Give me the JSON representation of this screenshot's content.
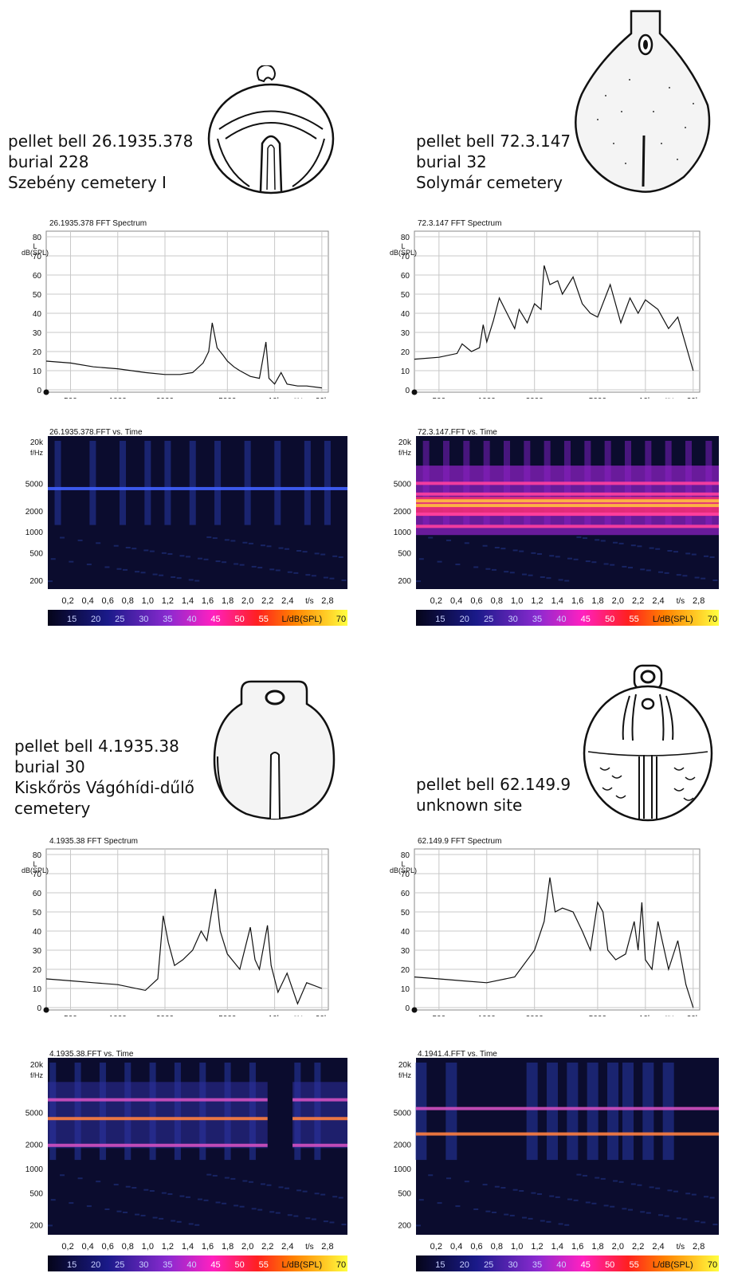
{
  "axis_text": {
    "db_top": "L",
    "db_unit": "dB(SPL)",
    "f_unit": "f/Hz",
    "t_unit": "t/s",
    "legend_unit": "L/dB(SPL)"
  },
  "colorbar_labels": [
    "15",
    "20",
    "25",
    "30",
    "35",
    "40",
    "45",
    "50",
    "55"
  ],
  "colorbar_last": "70",
  "colors": {
    "line": "#111111",
    "grid": "#c8c8c8",
    "spec_bg": "#0b0c2e"
  },
  "chart_data": [
    {
      "type": "line",
      "title": "26.1935.378 FFT Spectrum",
      "caption": [
        "pellet bell 26.1935.378",
        "burial 228",
        "Szebény cemetery I"
      ],
      "xscale": "log",
      "xlim": [
        350,
        22000
      ],
      "xticks": [
        "500",
        "1000",
        "2000",
        "5000",
        "10k",
        "20k"
      ],
      "ylim": [
        0,
        80
      ],
      "yticks": [
        "0",
        "10",
        "20",
        "30",
        "40",
        "50",
        "60",
        "70",
        "80"
      ],
      "grid": true,
      "x": [
        350,
        500,
        700,
        1000,
        1500,
        2000,
        2500,
        3000,
        3500,
        3800,
        4000,
        4300,
        4700,
        5000,
        5500,
        6000,
        7000,
        8000,
        8800,
        9200,
        10000,
        11000,
        12000,
        14000,
        16000,
        20000
      ],
      "y": [
        15,
        14,
        12,
        11,
        9,
        8,
        8,
        9,
        14,
        20,
        35,
        22,
        18,
        15,
        12,
        10,
        7,
        6,
        25,
        6,
        3,
        9,
        3,
        2,
        2,
        1
      ],
      "spectrogram": {
        "title": "26.1935.378.FFT vs. Time",
        "freq_ticks": [
          "20k",
          "5000",
          "2000",
          "1000",
          "500",
          "200"
        ],
        "time_ticks": [
          "0,2",
          "0,4",
          "0,6",
          "0,8",
          "1,0",
          "1,2",
          "1,4",
          "1,6",
          "1,8",
          "2,0",
          "2,2",
          "2,4",
          "2,8"
        ],
        "intensity": "low",
        "bands_hz": [
          4200
        ],
        "events_s": [
          0.1,
          0.45,
          0.75,
          1.0,
          1.2,
          1.45,
          1.7,
          2.0,
          2.3,
          2.6,
          2.8
        ]
      }
    },
    {
      "type": "line",
      "title": "72.3.147 FFT Spectrum",
      "caption": [
        "pellet bell 72.3.147",
        "burial 32",
        "Solymár cemetery"
      ],
      "xscale": "log",
      "xlim": [
        350,
        22000
      ],
      "xticks": [
        "500",
        "1000",
        "2000",
        "5000",
        "10k",
        "20k"
      ],
      "ylim": [
        0,
        80
      ],
      "yticks": [
        "0",
        "10",
        "20",
        "30",
        "40",
        "50",
        "60",
        "70",
        "80"
      ],
      "grid": true,
      "x": [
        350,
        500,
        650,
        700,
        800,
        900,
        950,
        1000,
        1100,
        1200,
        1500,
        1600,
        1800,
        2000,
        2200,
        2300,
        2500,
        2800,
        3000,
        3500,
        4000,
        4500,
        5000,
        6000,
        7000,
        8000,
        9000,
        10000,
        12000,
        14000,
        16000,
        20000
      ],
      "y": [
        16,
        17,
        19,
        24,
        20,
        22,
        34,
        25,
        36,
        48,
        32,
        42,
        35,
        45,
        42,
        65,
        55,
        57,
        50,
        59,
        45,
        40,
        38,
        55,
        35,
        48,
        40,
        47,
        42,
        32,
        38,
        10
      ],
      "spectrogram": {
        "title": "72.3.147.FFT vs. Time",
        "freq_ticks": [
          "20k",
          "5000",
          "2000",
          "1000",
          "500",
          "200"
        ],
        "time_ticks": [
          "0,2",
          "0,4",
          "0,6",
          "0,8",
          "1,0",
          "1,2",
          "1,4",
          "1,6",
          "1,8",
          "2,0",
          "2,2",
          "2,4",
          "2,8"
        ],
        "intensity": "high",
        "bands_hz": [
          2400,
          2800,
          1800,
          3500,
          5000,
          1200
        ],
        "events_s": [
          0.1,
          0.3,
          0.5,
          0.7,
          0.9,
          1.1,
          1.3,
          1.5,
          1.7,
          1.9,
          2.1,
          2.3,
          2.5,
          2.7,
          2.9
        ]
      }
    },
    {
      "type": "line",
      "title": "4.1935.38 FFT Spectrum",
      "caption": [
        "pellet bell 4.1935.38",
        "burial 30",
        "Kiskőrös Vágóhídi-dűlő",
        "cemetery"
      ],
      "xscale": "log",
      "xlim": [
        350,
        22000
      ],
      "xticks": [
        "500",
        "1000",
        "2000",
        "5000",
        "10k",
        "20k"
      ],
      "ylim": [
        0,
        80
      ],
      "yticks": [
        "0",
        "10",
        "20",
        "30",
        "40",
        "50",
        "60",
        "70",
        "80"
      ],
      "grid": true,
      "x": [
        350,
        500,
        700,
        1000,
        1500,
        1800,
        1950,
        2100,
        2300,
        2600,
        3000,
        3400,
        3700,
        4200,
        4500,
        5000,
        6000,
        7000,
        7500,
        8000,
        9000,
        9500,
        10500,
        12000,
        14000,
        16000,
        20000
      ],
      "y": [
        15,
        14,
        13,
        12,
        9,
        15,
        48,
        34,
        22,
        25,
        30,
        40,
        35,
        62,
        40,
        28,
        20,
        42,
        25,
        20,
        43,
        22,
        8,
        18,
        2,
        13,
        10
      ],
      "spectrogram": {
        "title": "4.1935.38.FFT vs. Time",
        "freq_ticks": [
          "20k",
          "5000",
          "2000",
          "1000",
          "500",
          "200"
        ],
        "time_ticks": [
          "0,2",
          "0,4",
          "0,6",
          "0,8",
          "1,0",
          "1,2",
          "1,4",
          "1,6",
          "1,8",
          "2,0",
          "2,2",
          "2,4",
          "2,8"
        ],
        "intensity": "medium",
        "bands_hz": [
          4200,
          1950,
          7200
        ],
        "events_s": [
          0.05,
          0.3,
          0.55,
          0.8,
          1.05,
          1.3,
          1.55,
          1.8,
          2.05,
          2.5,
          2.7
        ],
        "gap_s": [
          2.2,
          2.45
        ]
      }
    },
    {
      "type": "line",
      "title": "62.149.9 FFT Spectrum",
      "caption": [
        "pellet bell 62.149.9",
        "unknown site"
      ],
      "xscale": "log",
      "xlim": [
        350,
        22000
      ],
      "xticks": [
        "500",
        "1000",
        "2000",
        "5000",
        "10k",
        "20k"
      ],
      "ylim": [
        0,
        80
      ],
      "yticks": [
        "0",
        "10",
        "20",
        "30",
        "40",
        "50",
        "60",
        "70",
        "80"
      ],
      "grid": true,
      "x": [
        350,
        500,
        700,
        1000,
        1500,
        2000,
        2300,
        2500,
        2700,
        3000,
        3500,
        4000,
        4500,
        5000,
        5400,
        5800,
        6500,
        7500,
        8500,
        9000,
        9500,
        10000,
        11000,
        12000,
        14000,
        16000,
        18000,
        20000
      ],
      "y": [
        16,
        15,
        14,
        13,
        16,
        30,
        45,
        68,
        50,
        52,
        50,
        40,
        30,
        55,
        50,
        30,
        25,
        28,
        45,
        30,
        55,
        25,
        20,
        45,
        20,
        35,
        12,
        0
      ],
      "spectrogram": {
        "title": "4.1941.4.FFT vs. Time",
        "freq_ticks": [
          "20k",
          "5000",
          "2000",
          "1000",
          "500",
          "200"
        ],
        "time_ticks": [
          "0,2",
          "0,4",
          "0,6",
          "0,8",
          "1,0",
          "1,2",
          "1,4",
          "1,6",
          "1,8",
          "2,0",
          "2,2",
          "2,4",
          "2,8"
        ],
        "intensity": "sparse",
        "bands_hz": [
          2700,
          5600
        ],
        "events_s": [
          0.05,
          0.35,
          1.15,
          1.35,
          1.55,
          1.75,
          1.95,
          2.1,
          2.3,
          2.5
        ]
      }
    }
  ]
}
